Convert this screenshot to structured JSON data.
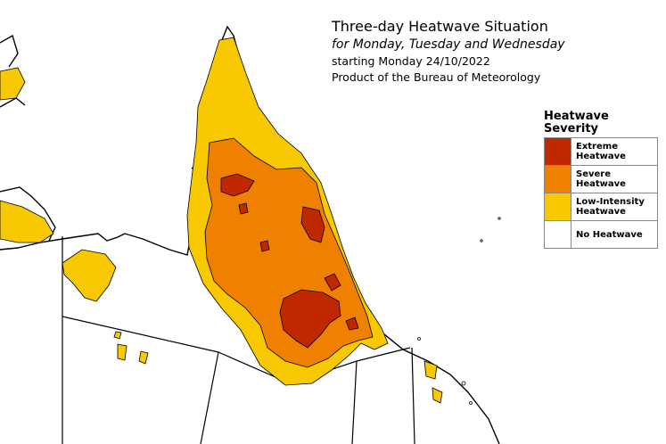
{
  "title": {
    "line1": "Three-day Heatwave Situation",
    "line2": "for Monday, Tuesday and Wednesday",
    "line3": "starting Monday 24/10/2022",
    "line4": "Product of the Bureau of Meteorology"
  },
  "legend": {
    "title_line1": "Heatwave",
    "title_line2": "Severity",
    "items": [
      {
        "line1": "Extreme",
        "line2": "Heatwave",
        "color": "#c02800"
      },
      {
        "line1": "Severe",
        "line2": "Heatwave",
        "color": "#f08000"
      },
      {
        "line1": "Low-Intensity",
        "line2": "Heatwave",
        "color": "#f8c800"
      },
      {
        "line1": "No Heatwave",
        "line2": "",
        "color": "#ffffff"
      }
    ]
  },
  "colors": {
    "land": "#ffffff",
    "outline": "#000000",
    "low": "#f8c800",
    "severe": "#f08000",
    "extreme": "#c02800"
  }
}
